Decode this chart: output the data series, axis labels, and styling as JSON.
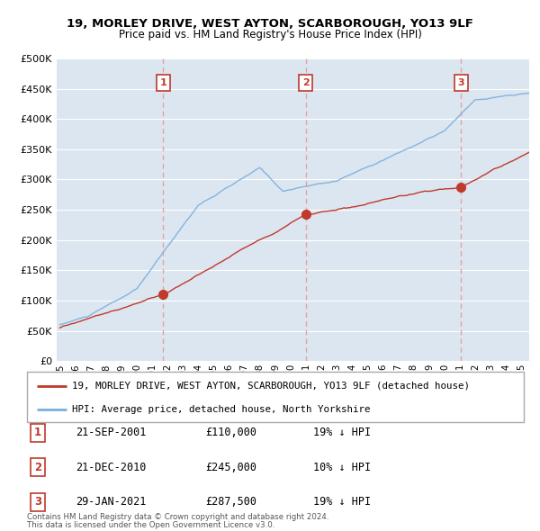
{
  "title": "19, MORLEY DRIVE, WEST AYTON, SCARBOROUGH, YO13 9LF",
  "subtitle": "Price paid vs. HM Land Registry's House Price Index (HPI)",
  "legend_red": "19, MORLEY DRIVE, WEST AYTON, SCARBOROUGH, YO13 9LF (detached house)",
  "legend_blue": "HPI: Average price, detached house, North Yorkshire",
  "footnote1": "Contains HM Land Registry data © Crown copyright and database right 2024.",
  "footnote2": "This data is licensed under the Open Government Licence v3.0.",
  "transactions": [
    {
      "num": 1,
      "date": "21-SEP-2001",
      "price": "£110,000",
      "rel": "19% ↓ HPI",
      "year": 2001.72,
      "value": 110000
    },
    {
      "num": 2,
      "date": "21-DEC-2010",
      "price": "£245,000",
      "rel": "10% ↓ HPI",
      "year": 2010.97,
      "value": 245000
    },
    {
      "num": 3,
      "date": "29-JAN-2021",
      "price": "£287,500",
      "rel": "19% ↓ HPI",
      "year": 2021.08,
      "value": 287500
    }
  ],
  "ylim": [
    0,
    500000
  ],
  "yticks": [
    0,
    50000,
    100000,
    150000,
    200000,
    250000,
    300000,
    350000,
    400000,
    450000,
    500000
  ],
  "background_color": "#dce6f1",
  "grid_color": "#ffffff",
  "red_color": "#c0392b",
  "blue_color": "#7aaedc",
  "vline_color": "#e8a0a0",
  "label_box_edge": "#c0392b",
  "label_box_face": "#ffffff",
  "label_text_color": "#c0392b"
}
